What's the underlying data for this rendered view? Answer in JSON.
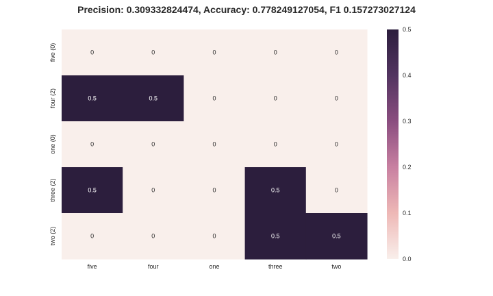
{
  "chart_data": {
    "type": "heatmap",
    "title": "Precision: 0.309332824474, Accuracy: 0.778249127054, F1 0.157273027124",
    "x_categories": [
      "five",
      "four",
      "one",
      "three",
      "two"
    ],
    "y_categories": [
      "five (0)",
      "four (2)",
      "one (0)",
      "three (2)",
      "two (2)"
    ],
    "values": [
      [
        0,
        0,
        0,
        0,
        0
      ],
      [
        0.5,
        0.5,
        0,
        0,
        0
      ],
      [
        0,
        0,
        0,
        0,
        0
      ],
      [
        0.5,
        0,
        0,
        0.5,
        0
      ],
      [
        0,
        0,
        0,
        0.5,
        0.5
      ]
    ],
    "cell_labels": [
      [
        "0",
        "0",
        "0",
        "0",
        "0"
      ],
      [
        "0.5",
        "0.5",
        "0",
        "0",
        "0"
      ],
      [
        "0",
        "0",
        "0",
        "0",
        "0"
      ],
      [
        "0.5",
        "0",
        "0",
        "0.5",
        "0"
      ],
      [
        "0",
        "0",
        "0",
        "0.5",
        "0.5"
      ]
    ],
    "colorbar": {
      "range": [
        0,
        0.5
      ],
      "ticks": [
        0.0,
        0.1,
        0.2,
        0.3,
        0.4,
        0.5
      ],
      "tick_labels": [
        "0.0",
        "0.1",
        "0.2",
        "0.3",
        "0.4",
        "0.5"
      ]
    },
    "colormap": [
      "#f9efeb",
      "#eeb8b6",
      "#c880a1",
      "#8a4d7f",
      "#523460",
      "#2c1e3d"
    ],
    "text_color_light": "#ffffff",
    "text_color_dark": "#262626",
    "grid": false
  }
}
